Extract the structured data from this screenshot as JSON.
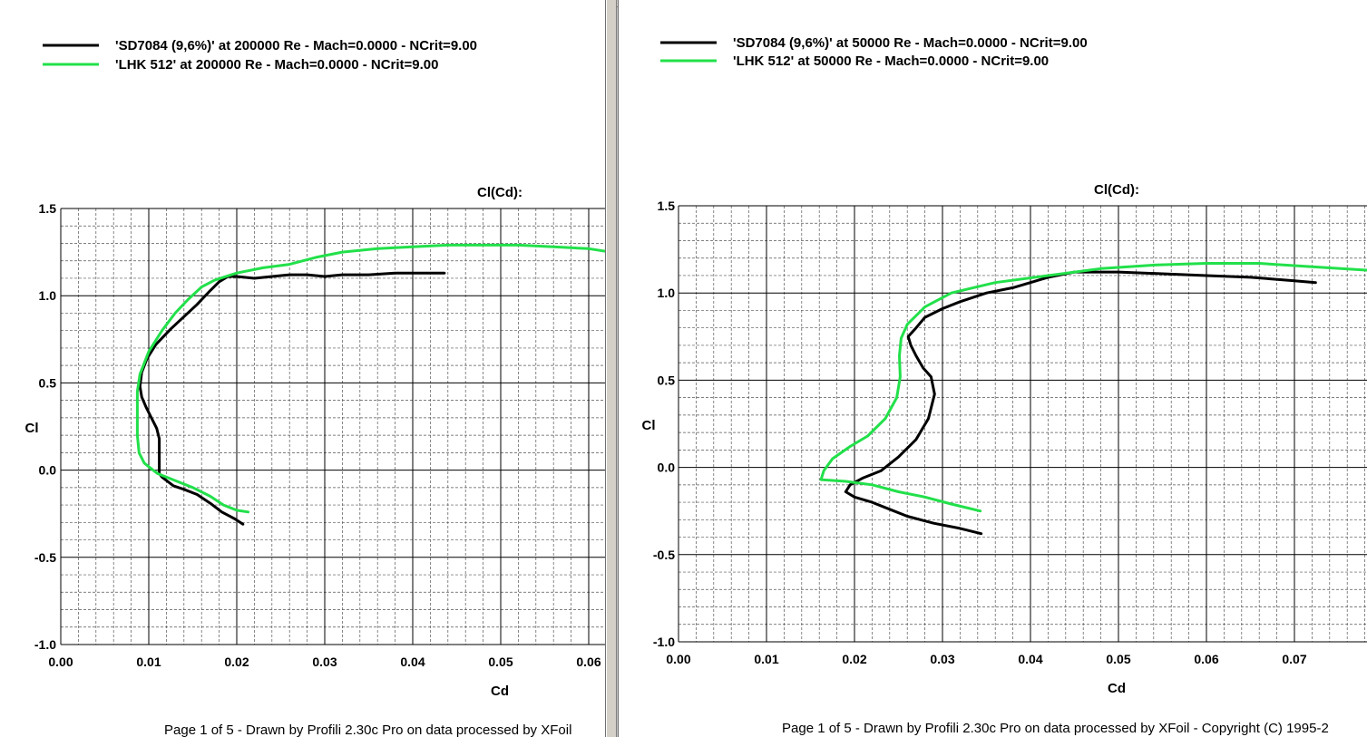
{
  "footer": {
    "left": "Page 1 of 5   -   Drawn by Profili 2.30c Pro on data processed by  XFoil",
    "right": "Page 1 of 5   -   Drawn by Profili 2.30c Pro on data processed by  XFoil - Copyright (C) 1995-2"
  },
  "colors": {
    "sd7084": "#000000",
    "lhk512": "#22e04a",
    "grid": "#000000"
  },
  "chart_data": [
    {
      "type": "line",
      "title": "Cl(Cd):",
      "xlabel": "Cd",
      "ylabel": "Cl",
      "xlim": [
        0.0,
        0.0625
      ],
      "ylim": [
        -1.0,
        1.5
      ],
      "xticks": [
        "0.00",
        "0.01",
        "0.02",
        "0.03",
        "0.04",
        "0.05",
        "0.06"
      ],
      "yticks": [
        "1.5",
        "1.0",
        "0.5",
        "0.0",
        "-0.5",
        "-1.0"
      ],
      "grid": true,
      "legend_position": "top-left",
      "series": [
        {
          "name": "'SD7084 (9,6%)' at 200000 Re - Mach=0.0000 - NCrit=9.00",
          "color": "#000000",
          "points": [
            [
              0.0207,
              -0.31
            ],
            [
              0.0198,
              -0.28
            ],
            [
              0.0183,
              -0.24
            ],
            [
              0.017,
              -0.19
            ],
            [
              0.0155,
              -0.14
            ],
            [
              0.014,
              -0.11
            ],
            [
              0.0128,
              -0.09
            ],
            [
              0.0115,
              -0.04
            ],
            [
              0.0112,
              -0.02
            ],
            [
              0.0112,
              0.04
            ],
            [
              0.0112,
              0.18
            ],
            [
              0.0109,
              0.24
            ],
            [
              0.0103,
              0.3
            ],
            [
              0.0097,
              0.36
            ],
            [
              0.0092,
              0.42
            ],
            [
              0.009,
              0.48
            ],
            [
              0.0092,
              0.56
            ],
            [
              0.0098,
              0.64
            ],
            [
              0.0108,
              0.72
            ],
            [
              0.0125,
              0.81
            ],
            [
              0.014,
              0.88
            ],
            [
              0.0155,
              0.95
            ],
            [
              0.017,
              1.03
            ],
            [
              0.018,
              1.08
            ],
            [
              0.019,
              1.11
            ],
            [
              0.02,
              1.11
            ],
            [
              0.022,
              1.1
            ],
            [
              0.024,
              1.11
            ],
            [
              0.026,
              1.12
            ],
            [
              0.028,
              1.12
            ],
            [
              0.03,
              1.11
            ],
            [
              0.032,
              1.12
            ],
            [
              0.035,
              1.12
            ],
            [
              0.038,
              1.13
            ],
            [
              0.041,
              1.13
            ],
            [
              0.0436,
              1.13
            ]
          ]
        },
        {
          "name": "'LHK  512' at 200000 Re - Mach=0.0000 - NCrit=9.00",
          "color": "#22e04a",
          "points": [
            [
              0.0213,
              -0.24
            ],
            [
              0.02,
              -0.23
            ],
            [
              0.0185,
              -0.2
            ],
            [
              0.017,
              -0.15
            ],
            [
              0.015,
              -0.1
            ],
            [
              0.013,
              -0.06
            ],
            [
              0.011,
              -0.02
            ],
            [
              0.0095,
              0.04
            ],
            [
              0.0089,
              0.1
            ],
            [
              0.0087,
              0.2
            ],
            [
              0.0087,
              0.35
            ],
            [
              0.0087,
              0.45
            ],
            [
              0.009,
              0.55
            ],
            [
              0.01,
              0.68
            ],
            [
              0.0115,
              0.8
            ],
            [
              0.013,
              0.9
            ],
            [
              0.0145,
              0.98
            ],
            [
              0.016,
              1.05
            ],
            [
              0.0175,
              1.09
            ],
            [
              0.02,
              1.13
            ],
            [
              0.023,
              1.16
            ],
            [
              0.026,
              1.18
            ],
            [
              0.029,
              1.22
            ],
            [
              0.032,
              1.25
            ],
            [
              0.036,
              1.27
            ],
            [
              0.04,
              1.28
            ],
            [
              0.044,
              1.29
            ],
            [
              0.048,
              1.29
            ],
            [
              0.052,
              1.29
            ],
            [
              0.056,
              1.28
            ],
            [
              0.06,
              1.27
            ],
            [
              0.0625,
              1.25
            ]
          ]
        }
      ]
    },
    {
      "type": "line",
      "title": "Cl(Cd):",
      "xlabel": "Cd",
      "ylabel": "Cl",
      "xlim": [
        0.0,
        0.0785
      ],
      "ylim": [
        -1.0,
        1.5
      ],
      "xticks": [
        "0.00",
        "0.01",
        "0.02",
        "0.03",
        "0.04",
        "0.05",
        "0.06",
        "0.07"
      ],
      "yticks": [
        "1.5",
        "1.0",
        "0.5",
        "0.0",
        "-0.5",
        "-1.0"
      ],
      "grid": true,
      "legend_position": "top-left",
      "series": [
        {
          "name": "'SD7084 (9,6%)' at 50000 Re - Mach=0.0000 - NCrit=9.00",
          "color": "#000000",
          "points": [
            [
              0.0344,
              -0.38
            ],
            [
              0.032,
              -0.35
            ],
            [
              0.029,
              -0.32
            ],
            [
              0.026,
              -0.28
            ],
            [
              0.024,
              -0.24
            ],
            [
              0.022,
              -0.2
            ],
            [
              0.02,
              -0.17
            ],
            [
              0.019,
              -0.14
            ],
            [
              0.0195,
              -0.1
            ],
            [
              0.021,
              -0.06
            ],
            [
              0.023,
              -0.02
            ],
            [
              0.025,
              0.06
            ],
            [
              0.027,
              0.16
            ],
            [
              0.0284,
              0.28
            ],
            [
              0.0291,
              0.42
            ],
            [
              0.0287,
              0.52
            ],
            [
              0.0278,
              0.57
            ],
            [
              0.027,
              0.64
            ],
            [
              0.0264,
              0.7
            ],
            [
              0.0261,
              0.75
            ],
            [
              0.027,
              0.8
            ],
            [
              0.028,
              0.86
            ],
            [
              0.03,
              0.91
            ],
            [
              0.032,
              0.95
            ],
            [
              0.035,
              1.0
            ],
            [
              0.038,
              1.03
            ],
            [
              0.04,
              1.06
            ],
            [
              0.042,
              1.09
            ],
            [
              0.045,
              1.12
            ],
            [
              0.05,
              1.12
            ],
            [
              0.055,
              1.11
            ],
            [
              0.06,
              1.1
            ],
            [
              0.065,
              1.09
            ],
            [
              0.07,
              1.07
            ],
            [
              0.0724,
              1.06
            ]
          ]
        },
        {
          "name": "'LHK  512' at 50000 Re - Mach=0.0000 - NCrit=9.00",
          "color": "#22e04a",
          "points": [
            [
              0.0343,
              -0.25
            ],
            [
              0.031,
              -0.21
            ],
            [
              0.028,
              -0.17
            ],
            [
              0.025,
              -0.14
            ],
            [
              0.022,
              -0.1
            ],
            [
              0.019,
              -0.08
            ],
            [
              0.0162,
              -0.07
            ],
            [
              0.0165,
              -0.02
            ],
            [
              0.0175,
              0.05
            ],
            [
              0.0195,
              0.12
            ],
            [
              0.0215,
              0.18
            ],
            [
              0.0235,
              0.28
            ],
            [
              0.0248,
              0.4
            ],
            [
              0.0252,
              0.52
            ],
            [
              0.0251,
              0.64
            ],
            [
              0.0253,
              0.74
            ],
            [
              0.026,
              0.82
            ],
            [
              0.028,
              0.92
            ],
            [
              0.031,
              1.0
            ],
            [
              0.036,
              1.06
            ],
            [
              0.042,
              1.1
            ],
            [
              0.048,
              1.14
            ],
            [
              0.054,
              1.16
            ],
            [
              0.06,
              1.17
            ],
            [
              0.066,
              1.17
            ],
            [
              0.072,
              1.15
            ],
            [
              0.0785,
              1.13
            ]
          ]
        }
      ]
    }
  ]
}
